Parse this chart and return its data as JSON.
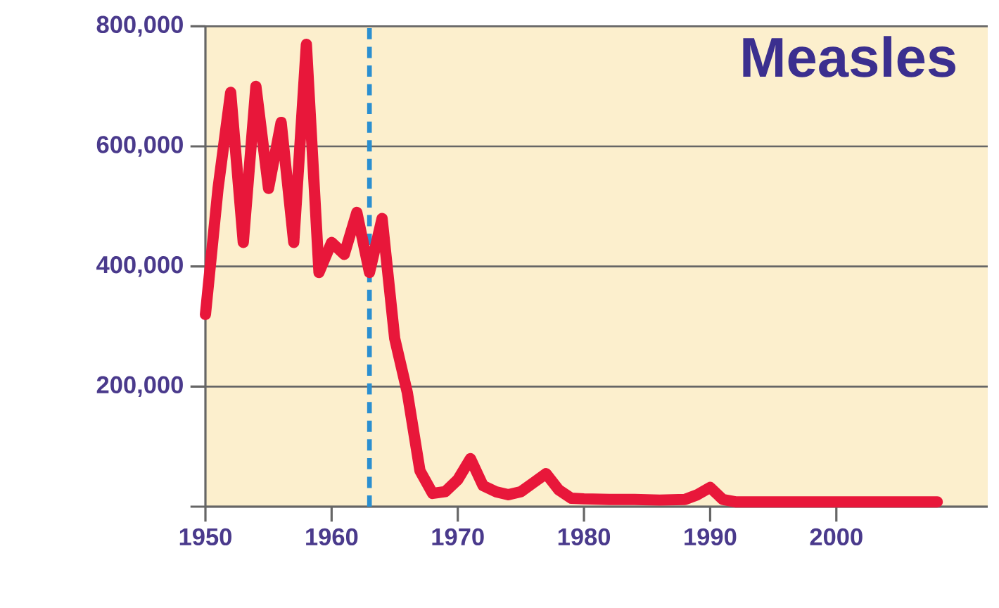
{
  "chart_data": {
    "type": "line",
    "title": "Measles",
    "xlim": [
      1950,
      2012
    ],
    "ylim": [
      0,
      800000
    ],
    "xticks": [
      1950,
      1960,
      1970,
      1980,
      1990,
      2000
    ],
    "yticks": [
      {
        "value": 0,
        "label": null
      },
      {
        "value": 200000,
        "label": "200,000"
      },
      {
        "value": 400000,
        "label": "400,000"
      },
      {
        "value": 600000,
        "label": "600,000"
      },
      {
        "value": 800000,
        "label": "800,000"
      }
    ],
    "grid": "y",
    "ref_lines": [
      {
        "axis": "x",
        "value": 1963,
        "color": "#2b8fd0",
        "line_style": "dashed"
      }
    ],
    "series": [
      {
        "color": "#e8173a",
        "x": [
          1950,
          1951,
          1952,
          1953,
          1954,
          1955,
          1956,
          1957,
          1958,
          1959,
          1960,
          1961,
          1962,
          1963,
          1964,
          1965,
          1966,
          1967,
          1968,
          1969,
          1970,
          1971,
          1972,
          1973,
          1974,
          1975,
          1976,
          1977,
          1978,
          1979,
          1980,
          1982,
          1984,
          1986,
          1988,
          1989,
          1990,
          1991,
          1992,
          1995,
          2000,
          2008
        ],
        "values": [
          320000,
          530000,
          690000,
          440000,
          700000,
          530000,
          640000,
          440000,
          770000,
          390000,
          440000,
          420000,
          490000,
          390000,
          480000,
          280000,
          190000,
          60000,
          22000,
          25000,
          45000,
          80000,
          35000,
          25000,
          20000,
          25000,
          40000,
          55000,
          28000,
          14000,
          13000,
          12000,
          12000,
          11000,
          12000,
          20000,
          32000,
          12000,
          8000,
          8000,
          8000,
          8000
        ]
      }
    ]
  }
}
